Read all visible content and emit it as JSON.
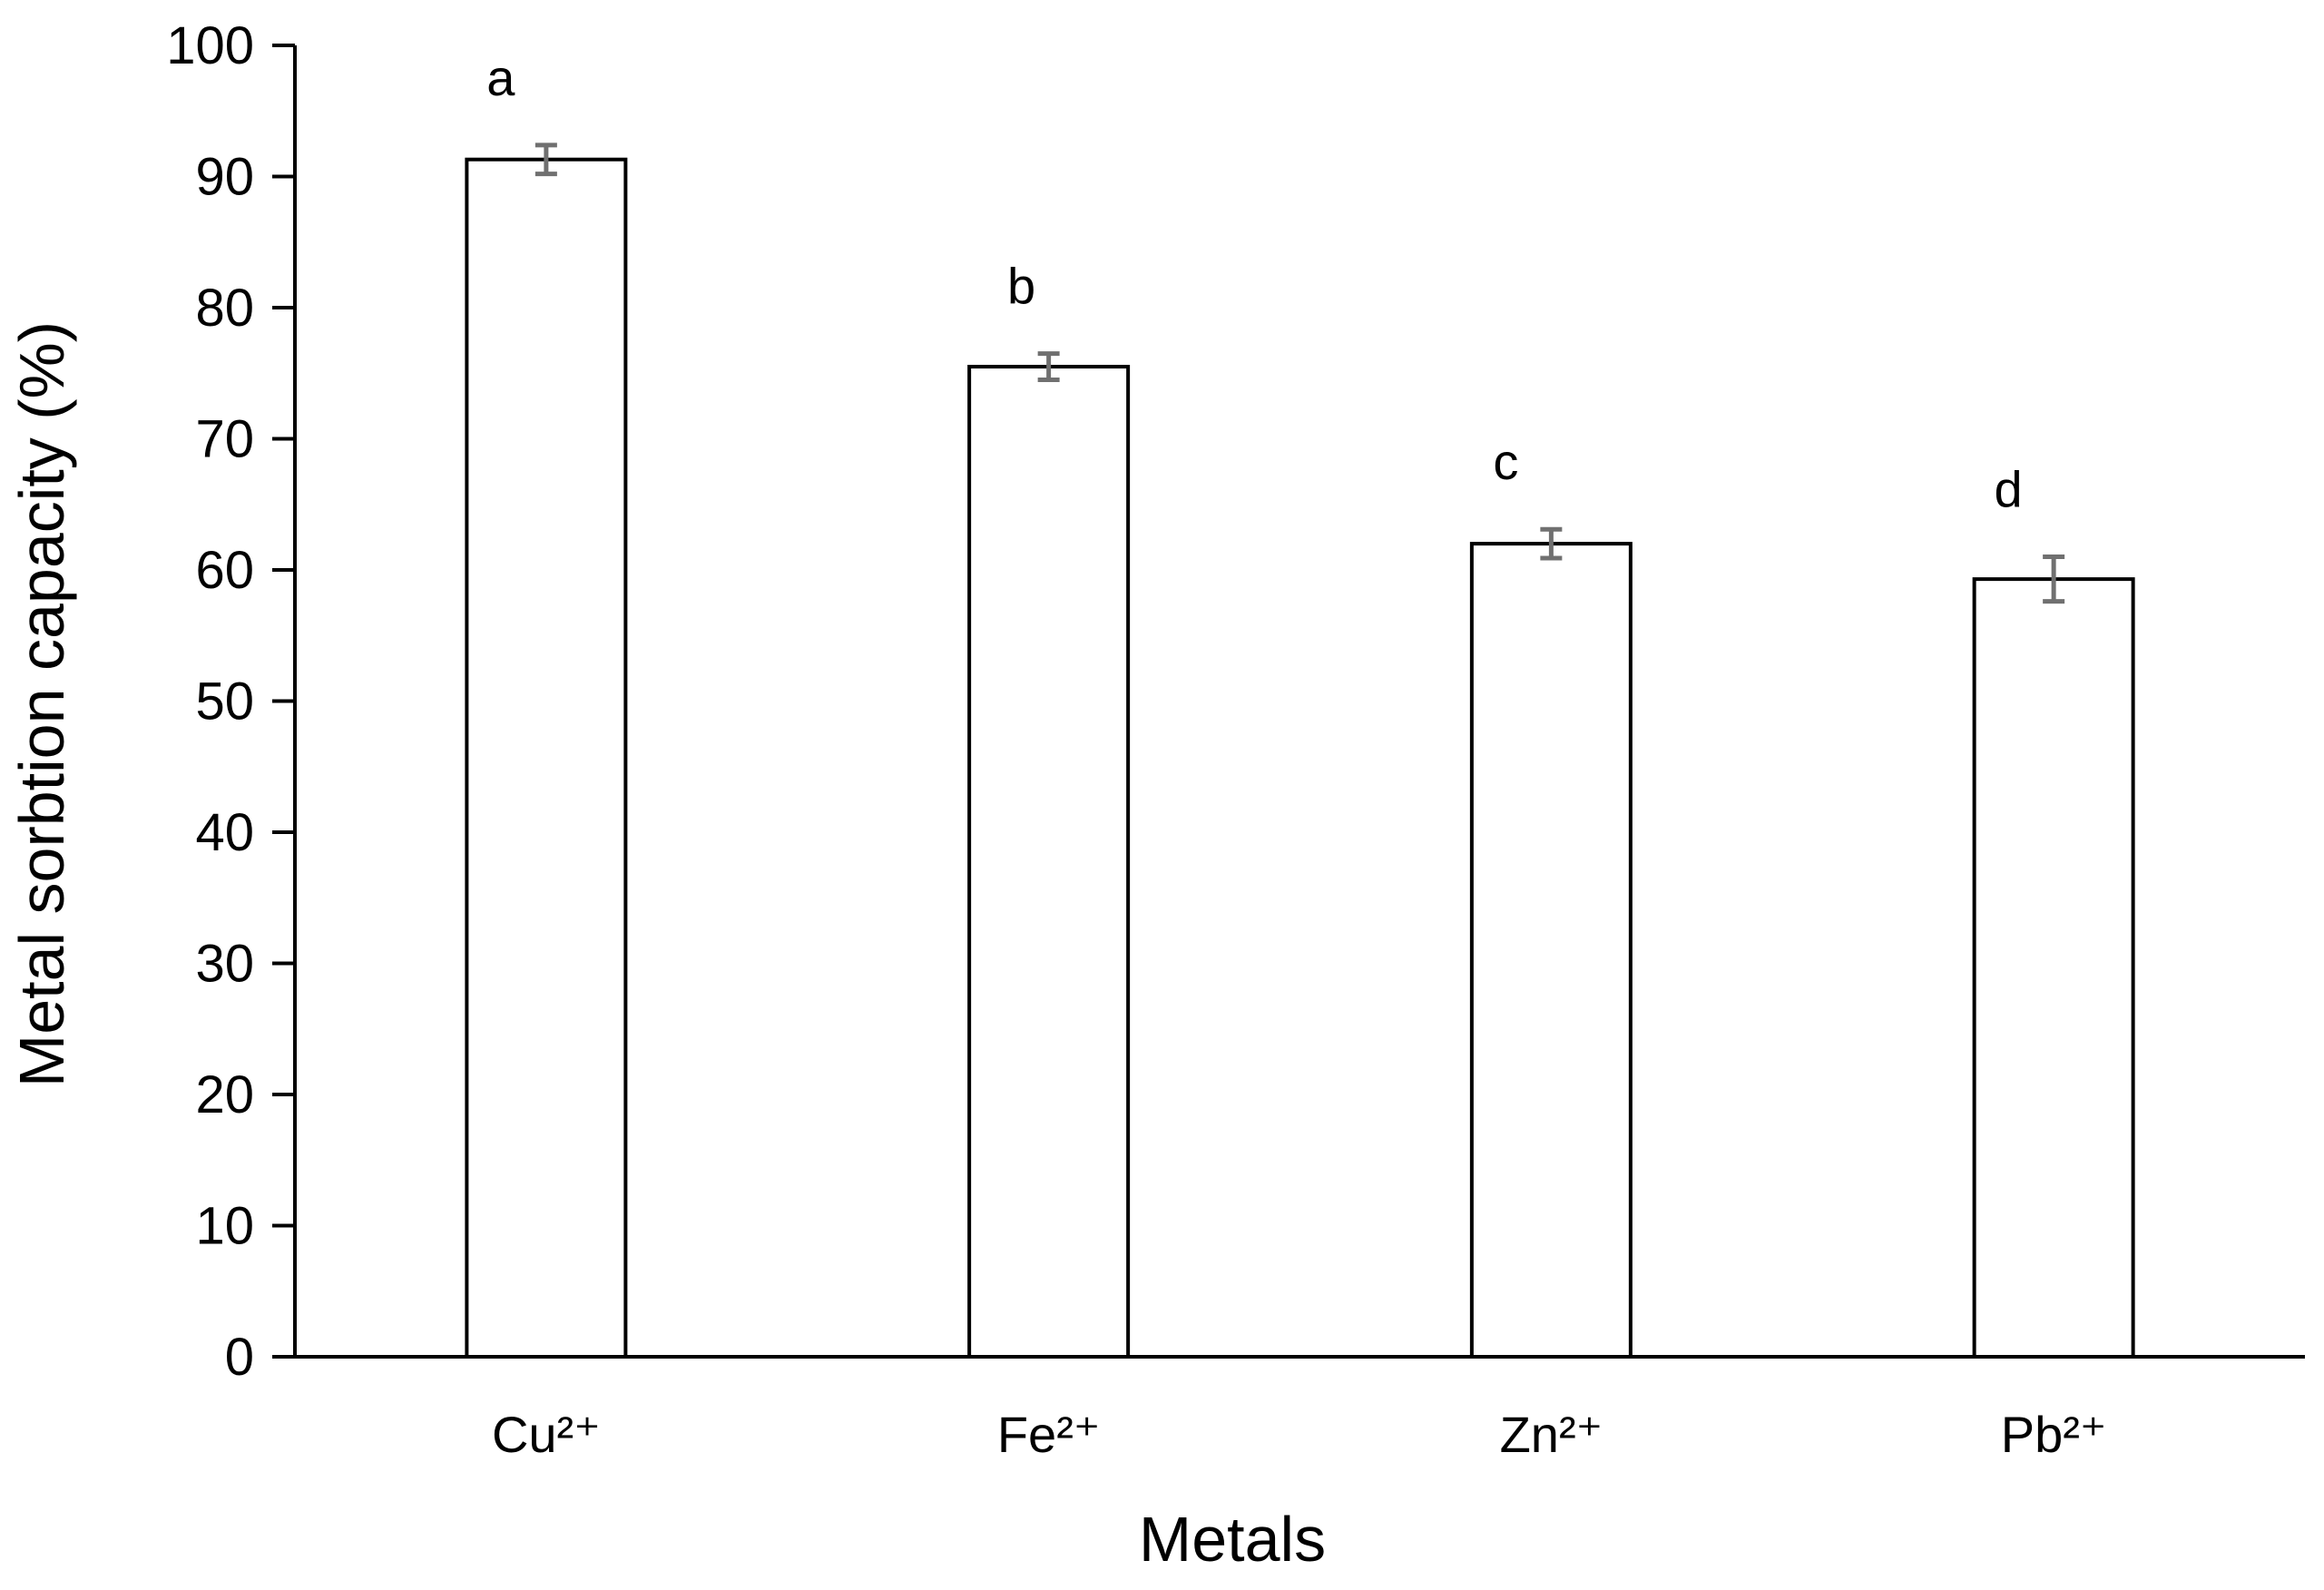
{
  "chart_data": {
    "type": "bar",
    "categories": [
      "Cu²⁺",
      "Fe²⁺",
      "Zn²⁺",
      "Pb²⁺"
    ],
    "values": [
      91.3,
      75.5,
      62.0,
      59.3
    ],
    "errors": [
      1.1,
      1.0,
      1.1,
      1.7
    ],
    "significance_letters": [
      "a",
      "b",
      "c",
      "d"
    ],
    "xlabel": "Metals",
    "ylabel": "Metal sorbtion capacity (%)",
    "ylim": [
      0,
      100
    ],
    "yticks": [
      0,
      10,
      20,
      30,
      40,
      50,
      60,
      70,
      80,
      90,
      100
    ],
    "grid": false,
    "colors": {
      "bar_fill": "#ffffff",
      "bar_stroke": "#000000",
      "error_bar": "#707070",
      "axis": "#000000"
    }
  }
}
